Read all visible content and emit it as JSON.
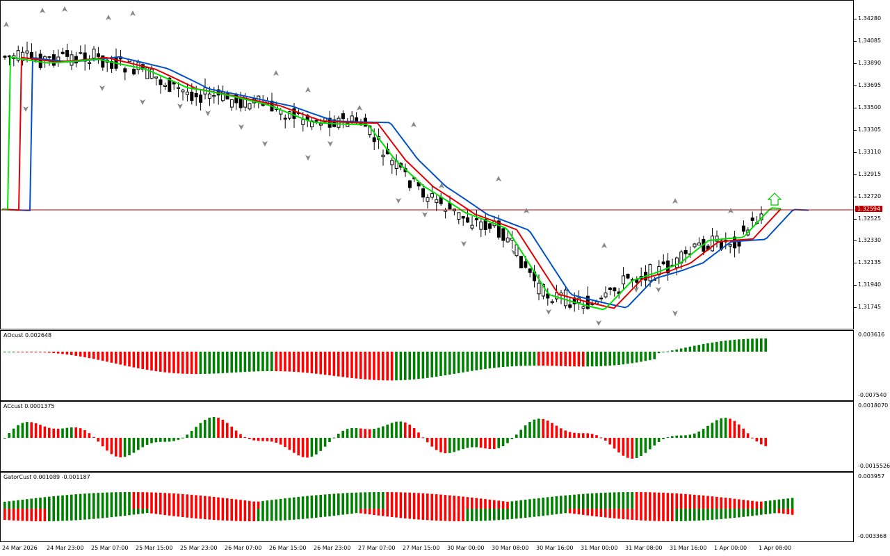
{
  "main": {
    "price_labels": [
      "1.34280",
      "1.34085",
      "1.33890",
      "1.33695",
      "1.33500",
      "1.33305",
      "1.33110",
      "1.32915",
      "1.32720",
      "1.32525",
      "1.32330",
      "1.32135",
      "1.31940",
      "1.31745"
    ],
    "current_price": "1.32594",
    "price_min": 1.3165,
    "price_max": 1.3435
  },
  "ao": {
    "title": "AOcust 0.002648",
    "scale_top": "0.003616",
    "scale_bottom": "-0.007540"
  },
  "ac": {
    "title": "ACcust 0.0001375",
    "scale_top": "0.0018070",
    "scale_bottom": "-0.0015526"
  },
  "gator": {
    "title": "GatorCust 0.001089 -0.001187",
    "scale_top": "0.003957",
    "scale_bottom": "-0.003368"
  },
  "time_labels": [
    "24 Mar 2026",
    "24 Mar 23:00",
    "25 Mar 07:00",
    "25 Mar 15:00",
    "25 Mar 23:00",
    "26 Mar 07:00",
    "26 Mar 15:00",
    "26 Mar 23:00",
    "27 Mar 07:00",
    "27 Mar 15:00",
    "30 Mar 00:00",
    "30 Mar 08:00",
    "30 Mar 16:00",
    "31 Mar 00:00",
    "31 Mar 08:00",
    "31 Mar 16:00",
    "1 Apr 00:00",
    "1 Apr 08:00"
  ],
  "colors": {
    "up_bar": "#008000",
    "down_bar": "#ff0000",
    "jaw": "#0050c8",
    "teeth": "#e00000",
    "lips": "#00e000",
    "current_line": "#c00000"
  }
}
